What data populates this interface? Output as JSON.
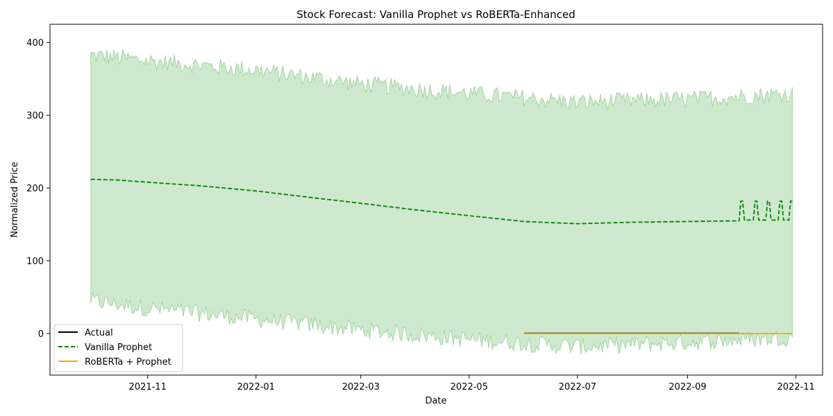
{
  "chart_data": {
    "type": "line",
    "title": "Stock Forecast: Vanilla Prophet vs RoBERTa-Enhanced",
    "xlabel": "Date",
    "ylabel": "Normalized Price",
    "xlim": [
      "2021-09-07",
      "2022-11-16"
    ],
    "ylim": [
      -57,
      425
    ],
    "x_ticks": [
      "2021-11",
      "2022-01",
      "2022-03",
      "2022-05",
      "2022-07",
      "2022-09",
      "2022-11"
    ],
    "x_tick_dates": [
      "2021-11-01",
      "2022-01-01",
      "2022-03-01",
      "2022-05-01",
      "2022-07-01",
      "2022-09-01",
      "2022-11-01"
    ],
    "y_ticks": [
      0,
      100,
      200,
      300,
      400
    ],
    "grid": false,
    "legend_position": "lower-left",
    "series": [
      {
        "name": "Actual",
        "color": "#000000",
        "style": "solid",
        "x_start": "2022-06-01",
        "x_end": "2022-09-30",
        "value": 0.5
      },
      {
        "name": "Vanilla Prophet",
        "color": "#008000",
        "style": "dashed",
        "x": [
          "2021-09-30",
          "2021-10-15",
          "2021-11-01",
          "2021-12-01",
          "2022-01-01",
          "2022-02-01",
          "2022-03-01",
          "2022-04-01",
          "2022-05-01",
          "2022-06-01",
          "2022-07-01",
          "2022-08-01",
          "2022-09-01",
          "2022-09-30"
        ],
        "y": [
          212,
          211,
          208,
          203,
          196,
          187,
          179,
          170,
          162,
          154,
          151,
          153,
          154,
          155
        ],
        "spikes": {
          "dates": [
            "2022-10-01",
            "2022-10-02",
            "2022-10-09",
            "2022-10-10",
            "2022-10-16",
            "2022-10-17",
            "2022-10-23",
            "2022-10-24",
            "2022-10-29",
            "2022-10-30"
          ],
          "high": 182,
          "low": 156
        }
      },
      {
        "name": "RoBERTa + Prophet",
        "color": "#ffa500",
        "style": "solid",
        "x_start": "2022-06-01",
        "x_end": "2022-10-30",
        "value": 0
      }
    ],
    "uncertainty_band": {
      "color": "#2ca02c",
      "opacity": 0.23,
      "x_start": "2021-09-30",
      "x_end": "2022-10-30",
      "upper_center": {
        "x": [
          "2021-09-30",
          "2021-11-01",
          "2022-01-01",
          "2022-03-01",
          "2022-05-01",
          "2022-07-01",
          "2022-09-01",
          "2022-10-30"
        ],
        "y": [
          383,
          375,
          362,
          343,
          330,
          318,
          322,
          330
        ]
      },
      "lower_center": {
        "x": [
          "2021-09-30",
          "2021-11-01",
          "2022-01-01",
          "2022-03-01",
          "2022-05-01",
          "2022-07-01",
          "2022-09-01",
          "2022-10-30"
        ],
        "y": [
          45,
          35,
          20,
          5,
          -8,
          -18,
          -12,
          -5
        ]
      },
      "noise_amplitude": 12
    }
  }
}
